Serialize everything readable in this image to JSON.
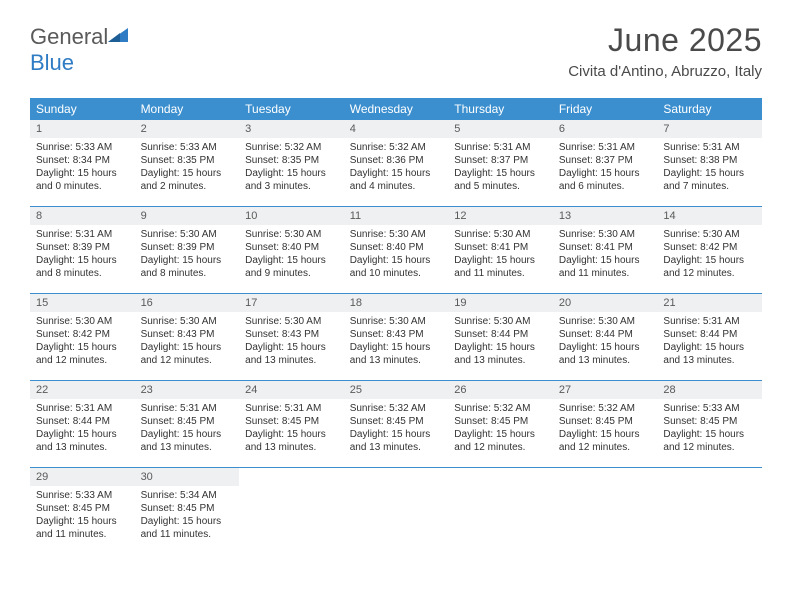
{
  "brand": {
    "part1": "General",
    "part2": "Blue",
    "color1": "#5a5a5a",
    "color2": "#2f7cc4"
  },
  "title": "June 2025",
  "location": "Civita d'Antino, Abruzzo, Italy",
  "colors": {
    "header_bg": "#3b8fcf",
    "header_text": "#ffffff",
    "daynum_bg": "#eef0f1",
    "border": "#3b8fcf",
    "text": "#333333"
  },
  "dow": [
    "Sunday",
    "Monday",
    "Tuesday",
    "Wednesday",
    "Thursday",
    "Friday",
    "Saturday"
  ],
  "weeks": [
    [
      {
        "n": "1",
        "sr": "Sunrise: 5:33 AM",
        "ss": "Sunset: 8:34 PM",
        "d1": "Daylight: 15 hours",
        "d2": "and 0 minutes."
      },
      {
        "n": "2",
        "sr": "Sunrise: 5:33 AM",
        "ss": "Sunset: 8:35 PM",
        "d1": "Daylight: 15 hours",
        "d2": "and 2 minutes."
      },
      {
        "n": "3",
        "sr": "Sunrise: 5:32 AM",
        "ss": "Sunset: 8:35 PM",
        "d1": "Daylight: 15 hours",
        "d2": "and 3 minutes."
      },
      {
        "n": "4",
        "sr": "Sunrise: 5:32 AM",
        "ss": "Sunset: 8:36 PM",
        "d1": "Daylight: 15 hours",
        "d2": "and 4 minutes."
      },
      {
        "n": "5",
        "sr": "Sunrise: 5:31 AM",
        "ss": "Sunset: 8:37 PM",
        "d1": "Daylight: 15 hours",
        "d2": "and 5 minutes."
      },
      {
        "n": "6",
        "sr": "Sunrise: 5:31 AM",
        "ss": "Sunset: 8:37 PM",
        "d1": "Daylight: 15 hours",
        "d2": "and 6 minutes."
      },
      {
        "n": "7",
        "sr": "Sunrise: 5:31 AM",
        "ss": "Sunset: 8:38 PM",
        "d1": "Daylight: 15 hours",
        "d2": "and 7 minutes."
      }
    ],
    [
      {
        "n": "8",
        "sr": "Sunrise: 5:31 AM",
        "ss": "Sunset: 8:39 PM",
        "d1": "Daylight: 15 hours",
        "d2": "and 8 minutes."
      },
      {
        "n": "9",
        "sr": "Sunrise: 5:30 AM",
        "ss": "Sunset: 8:39 PM",
        "d1": "Daylight: 15 hours",
        "d2": "and 8 minutes."
      },
      {
        "n": "10",
        "sr": "Sunrise: 5:30 AM",
        "ss": "Sunset: 8:40 PM",
        "d1": "Daylight: 15 hours",
        "d2": "and 9 minutes."
      },
      {
        "n": "11",
        "sr": "Sunrise: 5:30 AM",
        "ss": "Sunset: 8:40 PM",
        "d1": "Daylight: 15 hours",
        "d2": "and 10 minutes."
      },
      {
        "n": "12",
        "sr": "Sunrise: 5:30 AM",
        "ss": "Sunset: 8:41 PM",
        "d1": "Daylight: 15 hours",
        "d2": "and 11 minutes."
      },
      {
        "n": "13",
        "sr": "Sunrise: 5:30 AM",
        "ss": "Sunset: 8:41 PM",
        "d1": "Daylight: 15 hours",
        "d2": "and 11 minutes."
      },
      {
        "n": "14",
        "sr": "Sunrise: 5:30 AM",
        "ss": "Sunset: 8:42 PM",
        "d1": "Daylight: 15 hours",
        "d2": "and 12 minutes."
      }
    ],
    [
      {
        "n": "15",
        "sr": "Sunrise: 5:30 AM",
        "ss": "Sunset: 8:42 PM",
        "d1": "Daylight: 15 hours",
        "d2": "and 12 minutes."
      },
      {
        "n": "16",
        "sr": "Sunrise: 5:30 AM",
        "ss": "Sunset: 8:43 PM",
        "d1": "Daylight: 15 hours",
        "d2": "and 12 minutes."
      },
      {
        "n": "17",
        "sr": "Sunrise: 5:30 AM",
        "ss": "Sunset: 8:43 PM",
        "d1": "Daylight: 15 hours",
        "d2": "and 13 minutes."
      },
      {
        "n": "18",
        "sr": "Sunrise: 5:30 AM",
        "ss": "Sunset: 8:43 PM",
        "d1": "Daylight: 15 hours",
        "d2": "and 13 minutes."
      },
      {
        "n": "19",
        "sr": "Sunrise: 5:30 AM",
        "ss": "Sunset: 8:44 PM",
        "d1": "Daylight: 15 hours",
        "d2": "and 13 minutes."
      },
      {
        "n": "20",
        "sr": "Sunrise: 5:30 AM",
        "ss": "Sunset: 8:44 PM",
        "d1": "Daylight: 15 hours",
        "d2": "and 13 minutes."
      },
      {
        "n": "21",
        "sr": "Sunrise: 5:31 AM",
        "ss": "Sunset: 8:44 PM",
        "d1": "Daylight: 15 hours",
        "d2": "and 13 minutes."
      }
    ],
    [
      {
        "n": "22",
        "sr": "Sunrise: 5:31 AM",
        "ss": "Sunset: 8:44 PM",
        "d1": "Daylight: 15 hours",
        "d2": "and 13 minutes."
      },
      {
        "n": "23",
        "sr": "Sunrise: 5:31 AM",
        "ss": "Sunset: 8:45 PM",
        "d1": "Daylight: 15 hours",
        "d2": "and 13 minutes."
      },
      {
        "n": "24",
        "sr": "Sunrise: 5:31 AM",
        "ss": "Sunset: 8:45 PM",
        "d1": "Daylight: 15 hours",
        "d2": "and 13 minutes."
      },
      {
        "n": "25",
        "sr": "Sunrise: 5:32 AM",
        "ss": "Sunset: 8:45 PM",
        "d1": "Daylight: 15 hours",
        "d2": "and 13 minutes."
      },
      {
        "n": "26",
        "sr": "Sunrise: 5:32 AM",
        "ss": "Sunset: 8:45 PM",
        "d1": "Daylight: 15 hours",
        "d2": "and 12 minutes."
      },
      {
        "n": "27",
        "sr": "Sunrise: 5:32 AM",
        "ss": "Sunset: 8:45 PM",
        "d1": "Daylight: 15 hours",
        "d2": "and 12 minutes."
      },
      {
        "n": "28",
        "sr": "Sunrise: 5:33 AM",
        "ss": "Sunset: 8:45 PM",
        "d1": "Daylight: 15 hours",
        "d2": "and 12 minutes."
      }
    ],
    [
      {
        "n": "29",
        "sr": "Sunrise: 5:33 AM",
        "ss": "Sunset: 8:45 PM",
        "d1": "Daylight: 15 hours",
        "d2": "and 11 minutes."
      },
      {
        "n": "30",
        "sr": "Sunrise: 5:34 AM",
        "ss": "Sunset: 8:45 PM",
        "d1": "Daylight: 15 hours",
        "d2": "and 11 minutes."
      },
      null,
      null,
      null,
      null,
      null
    ]
  ]
}
